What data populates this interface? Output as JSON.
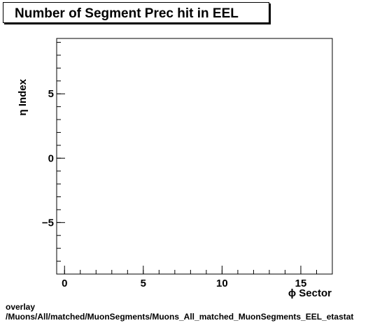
{
  "chart_data": {
    "type": "scatter",
    "title": "Number of Segment Prec hit in EEL",
    "xlabel": "ϕ Sector",
    "ylabel": "η Index",
    "xlim": [
      -0.5,
      17
    ],
    "ylim": [
      -9,
      9.3
    ],
    "x_ticks": [
      0,
      5,
      10,
      15
    ],
    "x_tick_labels": [
      "0",
      "5",
      "10",
      "15"
    ],
    "y_ticks": [
      -5,
      0,
      5
    ],
    "y_tick_labels": [
      "−5",
      "0",
      "5"
    ],
    "points": [],
    "grid": false,
    "legend": "none"
  },
  "footer": {
    "line1": "overlay",
    "line2": "/Muons/All/matched/MuonSegments/Muons_All_matched_MuonSegments_EEL_etastat"
  },
  "colors": {
    "frame": "#000000",
    "background": "#ffffff"
  }
}
